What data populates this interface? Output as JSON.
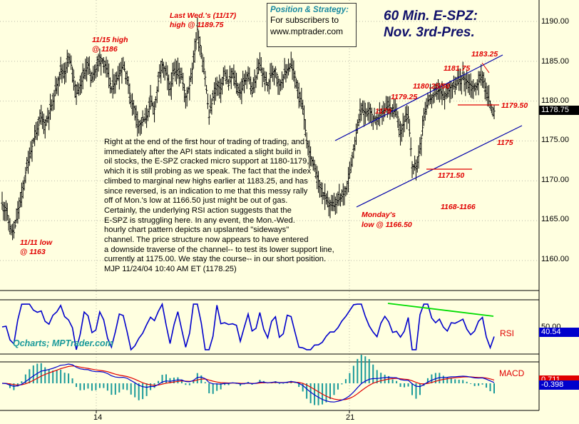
{
  "title": {
    "line1": "60 Min. E-SPZ:",
    "line2": "Nov. 3rd-Pres."
  },
  "position_box": {
    "heading": "Position & Strategy:",
    "line1": "For subscribers to",
    "line2": "www.mptrader.com"
  },
  "credit": "Qcharts; MPTrader.com",
  "commentary": [
    "Right at the end of the first hour of trading of trading, and",
    "immediately after the API stats indicated a slight build in",
    "oil stocks, the E-SPZ cracked micro support at 1180-1179,",
    "which it is still probing as we speak. The fact that the index",
    "climbed to marginal new highs earlier at 1183.25, and has",
    "since reversed, is an indication to me that this messy rally",
    "off of Mon.'s low at 1166.50 just might be out of gas.",
    "Certainly, the underlying RSI action suggests that the",
    "E-SPZ is struggling here.  In any event, the Mon.-Wed.",
    "hourly chart pattern depicts an upslanted \"sideways\"",
    "channel. The price structure now appears to have entered",
    "a downside traverse of the channel-- to test its lower support line,",
    "currently at 1175.00.  We stay the course-- in our short position.",
    "MJP 11/24/04 10:40 AM ET (1178.25)"
  ],
  "annotations": {
    "low_1111_a": "11/11 low",
    "low_1111_b": "@ 1163",
    "high_1115_a": "11/15 high",
    "high_1115_b": "@ 1186",
    "lastwed_a": "Last Wed.'s (11/17)",
    "lastwed_b": "high @ 1189.75",
    "monday_a": "Monday's",
    "monday_b": "low @ 1166.50",
    "a1179": "1179",
    "a117925": "1179.25",
    "a118025": "1180.25/50",
    "a118175": "1181.75",
    "a118325": "1183.25",
    "a117950": "1179.50",
    "a1175": "1175",
    "a117150": "1171.50",
    "a1168": "1168-1166"
  },
  "price_axis_labels": [
    "1190.00",
    "1185.00",
    "1180.00",
    "1175.00",
    "1170.00",
    "1165.00",
    "1160.00"
  ],
  "last_price": "1178.75",
  "rsi": {
    "label": "RSI",
    "tick": "50.00",
    "value": "40.54"
  },
  "macd": {
    "label": "MACD",
    "value1": "0.711",
    "value2": "-0.398"
  },
  "x_axis_labels": [
    "14",
    "21"
  ],
  "colors": {
    "background": "#ffffe0",
    "price": "#000000",
    "rsi": "#0000cc",
    "divergence": "#00dd00",
    "channel": "#0000aa",
    "annotation": "#e00000",
    "macd_fast": "#0000cc",
    "macd_slow": "#e00000",
    "histogram": "#1a9a9a"
  },
  "chart_data": [
    {
      "type": "bar",
      "subtype": "ohlc",
      "title": "60 Min. E-SPZ: Nov. 3rd-Pres.",
      "ylim": [
        1157,
        1193
      ],
      "y_ticks": [
        1160,
        1165,
        1170,
        1175,
        1180,
        1185,
        1190
      ],
      "x_ticks": [
        "14",
        "21"
      ],
      "close_path": [
        1167,
        1166.5,
        1164,
        1163.5,
        1166,
        1168,
        1171,
        1173,
        1175,
        1176.5,
        1178,
        1177,
        1178.5,
        1180,
        1182,
        1184,
        1183.5,
        1185.5,
        1184,
        1181,
        1182,
        1183.5,
        1184.5,
        1183,
        1184,
        1185.5,
        1185,
        1183.5,
        1181.5,
        1182.5,
        1183.5,
        1184.5,
        1183,
        1180,
        1179,
        1177,
        1177.5,
        1178,
        1180,
        1179,
        1182.5,
        1184.5,
        1183.5,
        1181.5,
        1183.5,
        1184,
        1183,
        1180.5,
        1182,
        1185,
        1189,
        1186,
        1183,
        1178,
        1180.5,
        1182,
        1181.5,
        1183.5,
        1182,
        1183.5,
        1182,
        1181,
        1182.5,
        1183.5,
        1181,
        1183,
        1184.5,
        1183,
        1182,
        1183.5,
        1184,
        1182,
        1183,
        1184,
        1184.5,
        1183,
        1181,
        1179,
        1175,
        1173,
        1171.5,
        1170,
        1168.5,
        1167.5,
        1167,
        1166.8,
        1167.5,
        1168,
        1169,
        1171,
        1174,
        1177,
        1179,
        1178.5,
        1179,
        1178,
        1177.5,
        1178.5,
        1179,
        1179.5,
        1178.5,
        1179,
        1176,
        1177.5,
        1178,
        1172,
        1171.5,
        1174,
        1178,
        1180,
        1180.5,
        1181,
        1181.5,
        1180.5,
        1181,
        1182,
        1181.75,
        1182.5,
        1183,
        1182.5,
        1182,
        1181.5,
        1182.5,
        1183.25,
        1181,
        1179.5,
        1178.75
      ],
      "channel": {
        "upper": [
          [
            1179,
            1179
          ],
          [
            1183.25,
            1185
          ]
        ],
        "lower": [
          [
            1166.5,
            1166.5
          ],
          [
            1171.5,
            1175
          ]
        ]
      },
      "horizontal_levels": [
        1179.5,
        1171.5
      ]
    },
    {
      "type": "line",
      "title": "RSI",
      "ylim": [
        0,
        100
      ],
      "reference_line": 50,
      "last_value": 40.54
    },
    {
      "type": "bar",
      "title": "MACD",
      "series": [
        {
          "name": "MACD"
        }
      ],
      "last_values": [
        0.711,
        -0.398
      ]
    }
  ]
}
